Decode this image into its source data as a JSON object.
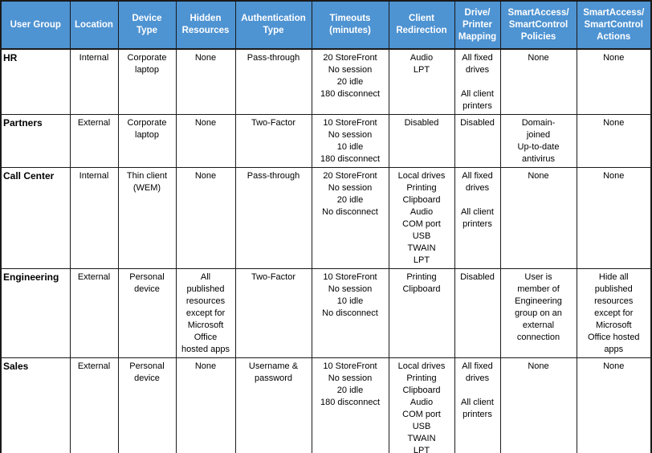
{
  "colors": {
    "header_bg": "#4E93D2",
    "header_text": "#FFFFFF",
    "border": "#1A1A1A",
    "body_bg": "#FFFFFF",
    "body_text": "#000000"
  },
  "table": {
    "columns": [
      [
        "User Group"
      ],
      [
        "Location"
      ],
      [
        "Device",
        "Type"
      ],
      [
        "Hidden",
        "Resources"
      ],
      [
        "Authentication",
        "Type"
      ],
      [
        "Timeouts",
        "(minutes)"
      ],
      [
        "Client",
        "Redirection"
      ],
      [
        "Drive/",
        "Printer",
        "Mapping"
      ],
      [
        "SmartAccess/",
        "SmartControl",
        "Policies"
      ],
      [
        "SmartAccess/",
        "SmartControl",
        "Actions"
      ]
    ],
    "rows": [
      {
        "user_group": "HR",
        "cells": [
          [
            "Internal"
          ],
          [
            "Corporate",
            "laptop"
          ],
          [
            "None"
          ],
          [
            "Pass-through"
          ],
          [
            "20 StoreFront",
            "No session",
            "20 idle",
            "180 disconnect"
          ],
          [
            "Audio",
            "LPT"
          ],
          [
            "All fixed",
            "drives",
            "",
            "All client",
            "printers"
          ],
          [
            "None"
          ],
          [
            "None"
          ]
        ]
      },
      {
        "user_group": "Partners",
        "cells": [
          [
            "External"
          ],
          [
            "Corporate",
            "laptop"
          ],
          [
            "None"
          ],
          [
            "Two-Factor"
          ],
          [
            "10 StoreFront",
            "No session",
            "10 idle",
            "180 disconnect"
          ],
          [
            "Disabled"
          ],
          [
            "Disabled"
          ],
          [
            "Domain-",
            "joined",
            "Up-to-date",
            "antivirus"
          ],
          [
            "None"
          ]
        ]
      },
      {
        "user_group": "Call Center",
        "cells": [
          [
            "Internal"
          ],
          [
            "Thin client",
            "(WEM)"
          ],
          [
            "None"
          ],
          [
            "Pass-through"
          ],
          [
            "20 StoreFront",
            "No session",
            "20 idle",
            "No disconnect"
          ],
          [
            "Local drives",
            "Printing",
            "Clipboard",
            "Audio",
            "COM port",
            "USB",
            "TWAIN",
            "LPT"
          ],
          [
            "All fixed",
            "drives",
            "",
            "All client",
            "printers"
          ],
          [
            "None"
          ],
          [
            "None"
          ]
        ]
      },
      {
        "user_group": "Engineering",
        "cells": [
          [
            "External"
          ],
          [
            "Personal",
            "device"
          ],
          [
            "All",
            "published",
            "resources",
            "except for",
            "Microsoft",
            "Office",
            "hosted apps"
          ],
          [
            "Two-Factor"
          ],
          [
            "10 StoreFront",
            "No session",
            "10 idle",
            "No disconnect"
          ],
          [
            "Printing",
            "Clipboard"
          ],
          [
            "Disabled"
          ],
          [
            "User is",
            "member of",
            "Engineering",
            "group on an",
            "external",
            "connection"
          ],
          [
            "Hide all",
            "published",
            "resources",
            "except for",
            "Microsoft",
            "Office hosted",
            "apps"
          ]
        ]
      },
      {
        "user_group": "Sales",
        "cells": [
          [
            "External"
          ],
          [
            "Personal",
            "device"
          ],
          [
            "None"
          ],
          [
            "Username &",
            "password"
          ],
          [
            "10 StoreFront",
            "No session",
            "20 idle",
            "180 disconnect"
          ],
          [
            "Local drives",
            "Printing",
            "Clipboard",
            "Audio",
            "COM port",
            "USB",
            "TWAIN",
            "LPT"
          ],
          [
            "All fixed",
            "drives",
            "",
            "All client",
            "printers"
          ],
          [
            "None"
          ],
          [
            "None"
          ]
        ]
      }
    ]
  }
}
